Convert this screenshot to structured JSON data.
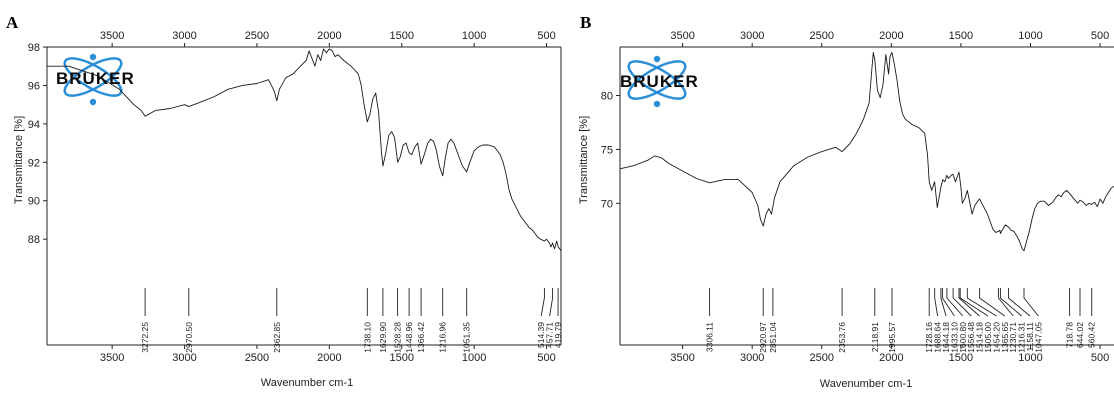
{
  "colors": {
    "axis": "#222222",
    "spectrum": "#1a1a1a",
    "logo": "#2b8fd8"
  },
  "chart_data": [
    {
      "type": "line",
      "panel": "A",
      "logo": "BRUKER",
      "xlabel": "Wavenumber cm-1",
      "ylabel": "Transmittance [%]",
      "xlim": [
        3950,
        400
      ],
      "ylim": [
        86.5,
        98
      ],
      "x_reversed": true,
      "x_ticks_bottom": [
        3500,
        3000,
        2500,
        2000,
        1500,
        1000,
        500
      ],
      "x_ticks_top": [
        3500,
        3000,
        2500,
        2000,
        1500,
        1000,
        500
      ],
      "y_ticks": [
        88,
        90,
        92,
        94,
        96,
        98
      ],
      "series": [
        {
          "x": [
            3950,
            3800,
            3600,
            3450,
            3350,
            3300,
            3272,
            3200,
            3100,
            3000,
            2970,
            2900,
            2800,
            2700,
            2600,
            2500,
            2420,
            2380,
            2363,
            2345,
            2300,
            2250,
            2200,
            2160,
            2140,
            2120,
            2100,
            2080,
            2060,
            2040,
            2020,
            2000,
            1980,
            1960,
            1940,
            1900,
            1850,
            1800,
            1780,
            1760,
            1738,
            1720,
            1700,
            1680,
            1660,
            1640,
            1630,
            1610,
            1590,
            1570,
            1550,
            1528,
            1510,
            1490,
            1470,
            1449,
            1430,
            1410,
            1390,
            1366,
            1340,
            1320,
            1300,
            1280,
            1260,
            1240,
            1217,
            1200,
            1180,
            1160,
            1140,
            1120,
            1100,
            1080,
            1051,
            1030,
            1000,
            970,
            940,
            900,
            860,
            820,
            800,
            780,
            760,
            740,
            720,
            700,
            680,
            660,
            640,
            620,
            600,
            580,
            560,
            540,
            514,
            500,
            480,
            470,
            458,
            445,
            430,
            419,
            400
          ],
          "y": [
            97.0,
            97.0,
            96.5,
            95.8,
            95.0,
            94.7,
            94.4,
            94.7,
            94.8,
            95.0,
            94.9,
            95.1,
            95.4,
            95.8,
            96.0,
            96.1,
            96.3,
            95.7,
            95.2,
            95.8,
            96.4,
            96.6,
            97.0,
            97.3,
            97.8,
            97.4,
            97.0,
            97.6,
            97.3,
            97.9,
            97.7,
            97.9,
            97.8,
            97.5,
            97.6,
            97.3,
            97.0,
            96.6,
            96.0,
            95.0,
            94.1,
            94.5,
            95.3,
            95.6,
            94.6,
            92.5,
            91.8,
            92.5,
            93.4,
            93.6,
            93.3,
            92.0,
            92.3,
            92.9,
            93.0,
            92.5,
            92.4,
            92.8,
            93.0,
            91.9,
            92.5,
            93.0,
            93.2,
            93.1,
            92.6,
            91.8,
            91.3,
            92.2,
            93.0,
            93.2,
            93.0,
            92.6,
            92.2,
            91.8,
            91.5,
            92.0,
            92.6,
            92.8,
            92.9,
            92.9,
            92.8,
            92.4,
            92.0,
            91.4,
            90.6,
            90.1,
            89.8,
            89.5,
            89.2,
            89.0,
            88.8,
            88.6,
            88.5,
            88.3,
            88.1,
            88.0,
            87.9,
            88.0,
            87.8,
            87.6,
            87.8,
            87.5,
            87.9,
            87.6,
            87.4
          ]
        }
      ],
      "peaks": [
        "3272.25",
        "2970.50",
        "2362.85",
        "1738.10",
        "1629.90",
        "1528.28",
        "1448.96",
        "1366.42",
        "1216.96",
        "1051.35",
        "514.39",
        "457.71",
        "419.79"
      ],
      "peak_x": [
        3272.25,
        2970.5,
        2362.85,
        1738.1,
        1629.9,
        1528.28,
        1448.96,
        1366.42,
        1216.96,
        1051.35,
        514.39,
        457.71,
        419.79
      ]
    },
    {
      "type": "line",
      "panel": "B",
      "logo": "BRUKER",
      "xlabel": "Wavenumber cm-1",
      "ylabel": "Transmittance [%]",
      "xlim": [
        3950,
        400
      ],
      "ylim": [
        64,
        84.5
      ],
      "x_reversed": true,
      "x_ticks_bottom": [
        3500,
        3000,
        2500,
        2000,
        1500,
        1000,
        500
      ],
      "x_ticks_top": [
        3500,
        3000,
        2500,
        2000,
        1500,
        1000,
        500
      ],
      "y_ticks": [
        70,
        75,
        80
      ],
      "series": [
        {
          "x": [
            3950,
            3850,
            3750,
            3700,
            3650,
            3600,
            3500,
            3400,
            3306,
            3200,
            3100,
            3000,
            2960,
            2940,
            2921,
            2900,
            2880,
            2861,
            2840,
            2800,
            2700,
            2600,
            2500,
            2400,
            2354,
            2300,
            2250,
            2200,
            2160,
            2140,
            2130,
            2119,
            2100,
            2080,
            2060,
            2040,
            2020,
            2010,
            1996,
            1980,
            1960,
            1940,
            1920,
            1900,
            1850,
            1800,
            1760,
            1740,
            1728,
            1710,
            1689,
            1670,
            1644,
            1630,
            1615,
            1601,
            1590,
            1570,
            1557,
            1540,
            1514,
            1500,
            1490,
            1470,
            1454,
            1440,
            1420,
            1400,
            1380,
            1366,
            1350,
            1330,
            1310,
            1290,
            1270,
            1250,
            1231,
            1220,
            1216,
            1200,
            1180,
            1158,
            1140,
            1120,
            1100,
            1080,
            1060,
            1047,
            1030,
            1010,
            990,
            970,
            950,
            930,
            900,
            870,
            840,
            820,
            800,
            780,
            760,
            740,
            719,
            700,
            680,
            660,
            644,
            620,
            600,
            580,
            560,
            540,
            520,
            500,
            480,
            460,
            440,
            420,
            400
          ],
          "y": [
            73.2,
            73.5,
            74.0,
            74.4,
            74.2,
            73.7,
            73.0,
            72.3,
            71.9,
            72.2,
            72.2,
            71.0,
            69.8,
            68.5,
            67.9,
            69.0,
            69.5,
            69.0,
            70.5,
            72.0,
            73.5,
            74.3,
            74.8,
            75.2,
            74.8,
            75.5,
            76.5,
            77.8,
            79.3,
            82.5,
            84.0,
            83.3,
            80.5,
            79.8,
            81.0,
            83.8,
            82.0,
            83.6,
            84.0,
            83.0,
            81.5,
            79.5,
            78.3,
            77.8,
            77.3,
            77.0,
            76.5,
            74.5,
            72.0,
            71.2,
            72.0,
            69.6,
            71.5,
            72.2,
            72.0,
            72.6,
            72.3,
            72.6,
            72.7,
            72.0,
            72.9,
            71.5,
            70.0,
            70.5,
            71.2,
            70.3,
            69.0,
            69.8,
            70.2,
            70.4,
            70.0,
            69.5,
            69.0,
            68.3,
            67.6,
            67.3,
            67.4,
            67.5,
            67.2,
            67.6,
            68.0,
            67.8,
            67.5,
            67.4,
            67.0,
            66.5,
            65.8,
            65.6,
            66.4,
            67.3,
            68.5,
            69.5,
            70.0,
            70.2,
            70.2,
            69.8,
            70.1,
            70.5,
            70.8,
            70.6,
            71.0,
            71.2,
            70.9,
            70.6,
            70.3,
            70.0,
            70.3,
            70.1,
            69.8,
            70.0,
            69.9,
            70.1,
            69.7,
            70.4,
            70.0,
            70.6,
            71.0,
            71.4,
            71.6
          ]
        }
      ],
      "peaks": [
        "3306.11",
        "2920.97",
        "2851.04",
        "2353.76",
        "2118.91",
        "1995.57",
        "1728.16",
        "1688.64",
        "1644.18",
        "1633.10",
        "1600.80",
        "1556.48",
        "1514.18",
        "1505.00",
        "1454.20",
        "1365.65",
        "1230.71",
        "1216.31",
        "1158.11",
        "1047.05",
        "718.78",
        "644.02",
        "560.42"
      ],
      "peak_x": [
        3306.11,
        2920.97,
        2851.04,
        2353.76,
        2118.91,
        1995.57,
        1728.16,
        1688.64,
        1644.18,
        1633.1,
        1600.8,
        1556.48,
        1514.18,
        1505.0,
        1454.2,
        1365.65,
        1230.71,
        1216.31,
        1158.11,
        1047.05,
        718.78,
        644.02,
        560.42
      ]
    }
  ]
}
